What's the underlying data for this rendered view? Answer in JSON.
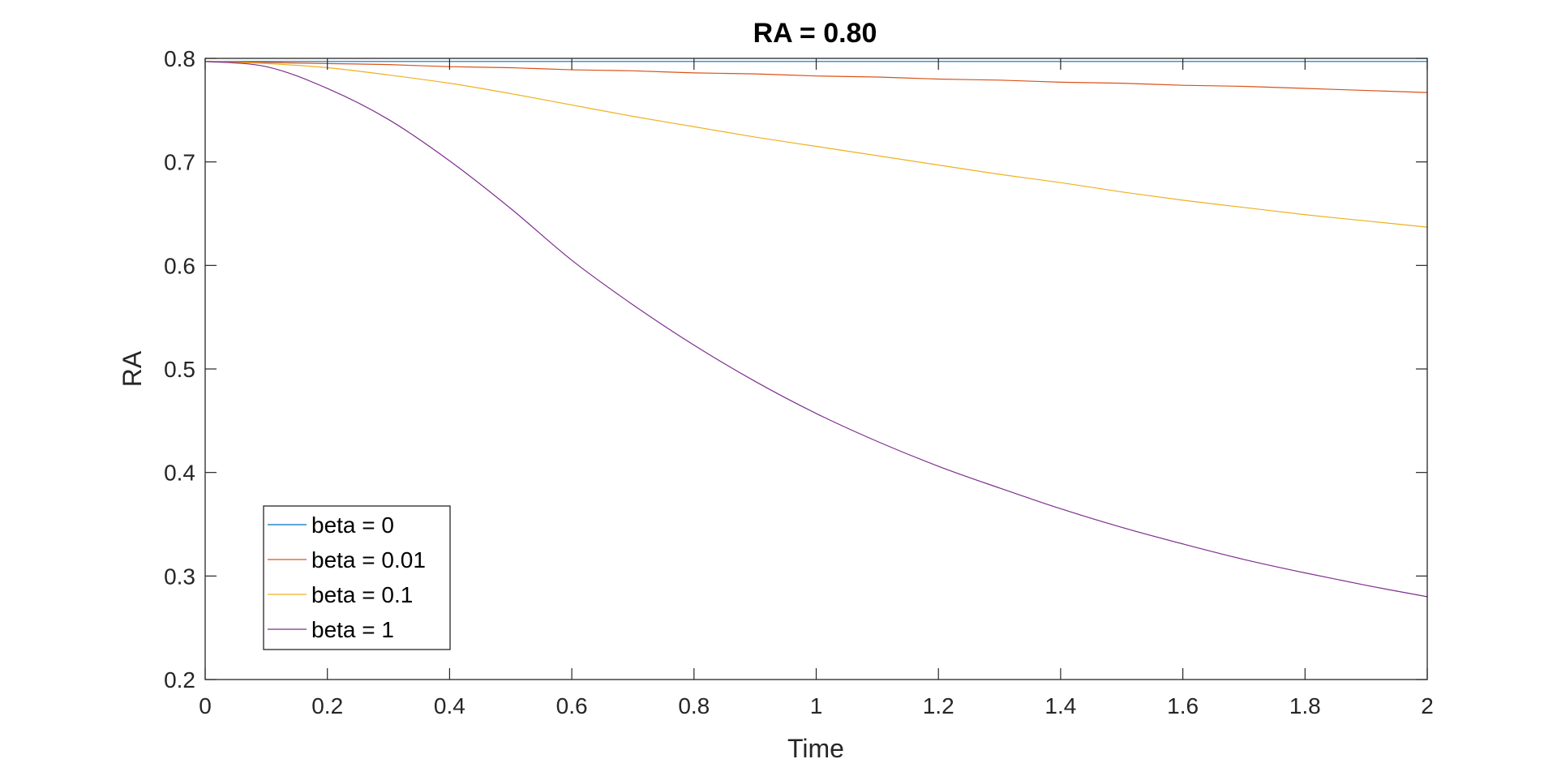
{
  "chart_data": {
    "type": "line",
    "title": "RA = 0.80",
    "xlabel": "Time",
    "ylabel": "RA",
    "xlim": [
      0,
      2
    ],
    "ylim": [
      0.2,
      0.8
    ],
    "xticks": [
      0,
      0.2,
      0.4,
      0.6,
      0.8,
      1,
      1.2,
      1.4,
      1.6,
      1.8,
      2
    ],
    "xtick_labels": [
      "0",
      "0.2",
      "0.4",
      "0.6",
      "0.8",
      "1",
      "1.2",
      "1.4",
      "1.6",
      "1.8",
      "2"
    ],
    "yticks": [
      0.2,
      0.3,
      0.4,
      0.5,
      0.6,
      0.7,
      0.8
    ],
    "ytick_labels": [
      "0.2",
      "0.3",
      "0.4",
      "0.5",
      "0.6",
      "0.7",
      "0.8"
    ],
    "grid": false,
    "legend_position": "bottom-left",
    "x": [
      0,
      0.1,
      0.2,
      0.3,
      0.4,
      0.5,
      0.6,
      0.7,
      0.8,
      0.9,
      1.0,
      1.1,
      1.2,
      1.3,
      1.4,
      1.5,
      1.6,
      1.7,
      1.8,
      1.9,
      2.0
    ],
    "series": [
      {
        "name": "beta = 0",
        "color": "#0072BD",
        "values": [
          0.797,
          0.797,
          0.797,
          0.797,
          0.797,
          0.797,
          0.797,
          0.797,
          0.797,
          0.797,
          0.797,
          0.797,
          0.797,
          0.797,
          0.797,
          0.797,
          0.797,
          0.797,
          0.797,
          0.797,
          0.797
        ]
      },
      {
        "name": "beta = 0.01",
        "color": "#D95319",
        "values": [
          0.797,
          0.796,
          0.795,
          0.794,
          0.792,
          0.791,
          0.789,
          0.788,
          0.786,
          0.785,
          0.783,
          0.782,
          0.78,
          0.779,
          0.777,
          0.776,
          0.774,
          0.773,
          0.771,
          0.769,
          0.767
        ]
      },
      {
        "name": "beta = 0.1",
        "color": "#EDB120",
        "values": [
          0.797,
          0.795,
          0.791,
          0.784,
          0.776,
          0.766,
          0.755,
          0.744,
          0.734,
          0.724,
          0.715,
          0.706,
          0.697,
          0.688,
          0.68,
          0.671,
          0.663,
          0.656,
          0.649,
          0.643,
          0.637
        ]
      },
      {
        "name": "beta = 1",
        "color": "#7E2F8E",
        "values": [
          0.797,
          0.792,
          0.771,
          0.741,
          0.701,
          0.655,
          0.605,
          0.562,
          0.523,
          0.488,
          0.457,
          0.43,
          0.406,
          0.385,
          0.365,
          0.347,
          0.331,
          0.316,
          0.303,
          0.291,
          0.28
        ]
      }
    ]
  }
}
